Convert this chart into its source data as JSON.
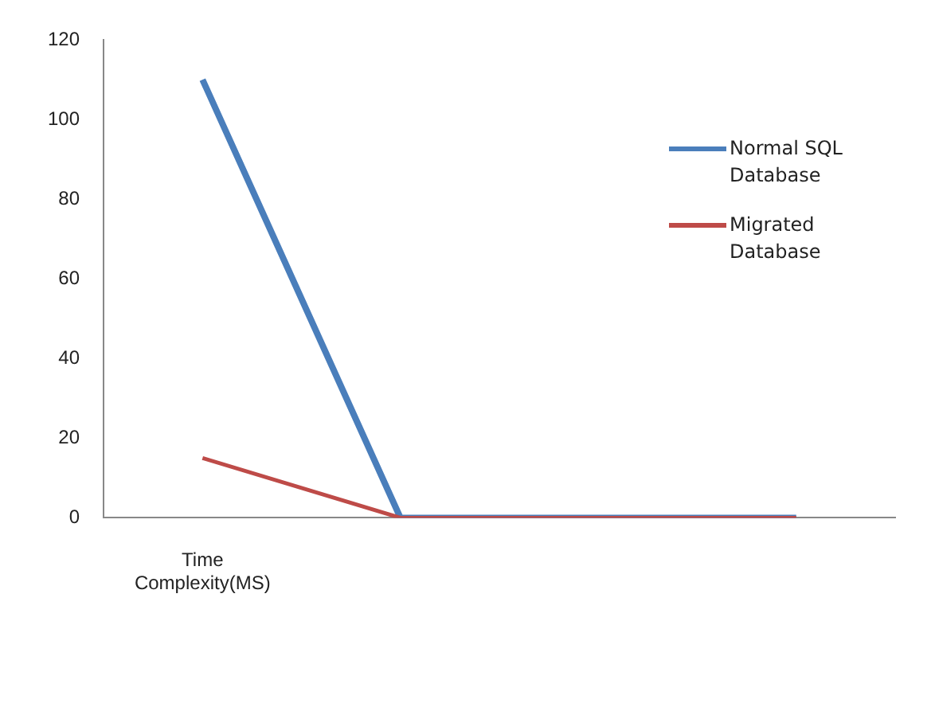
{
  "chart_data": {
    "type": "line",
    "categories": [
      "Time Complexity(MS)",
      null,
      null,
      null
    ],
    "series": [
      {
        "name": "Normal SQL Database",
        "color": "#4a7ebb",
        "values": [
          110,
          0,
          0,
          0
        ]
      },
      {
        "name": "Migrated Database",
        "color": "#be4b48",
        "values": [
          15,
          0,
          0,
          0
        ]
      }
    ],
    "ylim": [
      0,
      120
    ],
    "yticks": [
      0,
      20,
      40,
      60,
      80,
      100,
      120
    ],
    "grid": false,
    "legend": "right",
    "marker": "none",
    "line_style": "solid"
  }
}
